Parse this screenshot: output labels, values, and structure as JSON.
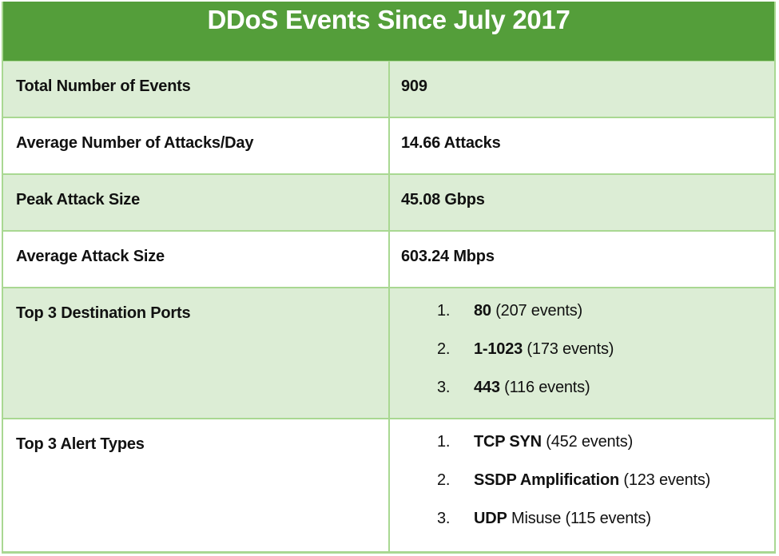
{
  "title": "DDoS Events Since July 2017",
  "colors": {
    "title_bg": "#549e3a",
    "title_text": "#ffffff",
    "row_shaded": "#dcedd5",
    "row_plain": "#ffffff",
    "border": "#a9d892"
  },
  "rows": [
    {
      "label": "Total Number of Events",
      "value": "909"
    },
    {
      "label": "Average Number of Attacks/Day",
      "value": "14.66 Attacks"
    },
    {
      "label": "Peak Attack Size",
      "value": "45.08 Gbps"
    },
    {
      "label": "Average Attack Size",
      "value": "603.24 Mbps"
    }
  ],
  "top_ports": {
    "label": "Top 3 Destination Ports",
    "items": [
      {
        "num": "1.",
        "bold": "80",
        "rest": " (207 events)"
      },
      {
        "num": "2.",
        "bold": "1-1023",
        "rest": " (173 events)"
      },
      {
        "num": "3.",
        "bold": "443",
        "rest": " (116 events)"
      }
    ]
  },
  "top_alerts": {
    "label": "Top 3 Alert Types",
    "items": [
      {
        "num": "1.",
        "bold": "TCP SYN",
        "rest": " (452 events)"
      },
      {
        "num": "2.",
        "bold": "SSDP Amplification",
        "rest": " (123 events)"
      },
      {
        "num": "3.",
        "bold": "UDP",
        "rest": " Misuse (115 events)"
      }
    ]
  }
}
